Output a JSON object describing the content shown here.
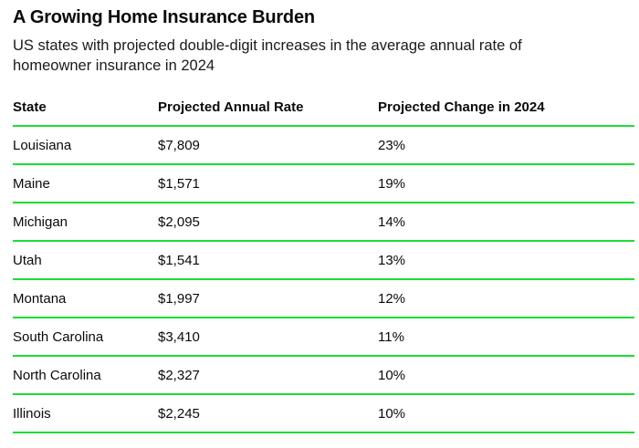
{
  "page": {
    "background": "#ffffff"
  },
  "header": {
    "title": "A Growing Home Insurance Burden",
    "subtitle": "US states with projected double-digit increases in the average annual rate of homeowner insurance in 2024"
  },
  "table": {
    "accent_color": "#1edc34",
    "columns": [
      "State",
      "Projected Annual Rate",
      "Projected Change in 2024"
    ],
    "rows": [
      {
        "state": "Louisiana",
        "rate": "$7,809",
        "change": "23%"
      },
      {
        "state": "Maine",
        "rate": "$1,571",
        "change": "19%"
      },
      {
        "state": "Michigan",
        "rate": "$2,095",
        "change": "14%"
      },
      {
        "state": "Utah",
        "rate": "$1,541",
        "change": "13%"
      },
      {
        "state": "Montana",
        "rate": "$1,997",
        "change": "12%"
      },
      {
        "state": "South Carolina",
        "rate": "$3,410",
        "change": "11%"
      },
      {
        "state": "North Carolina",
        "rate": "$2,327",
        "change": "10%"
      },
      {
        "state": "Illinois",
        "rate": "$2,245",
        "change": "10%"
      }
    ]
  },
  "chart_data": {
    "type": "table",
    "title": "A Growing Home Insurance Burden",
    "subtitle": "US states with projected double-digit increases in the average annual rate of homeowner insurance in 2024",
    "columns": [
      "State",
      "Projected Annual Rate",
      "Projected Change in 2024"
    ],
    "rows": [
      [
        "Louisiana",
        "$7,809",
        "23%"
      ],
      [
        "Maine",
        "$1,571",
        "19%"
      ],
      [
        "Michigan",
        "$2,095",
        "14%"
      ],
      [
        "Utah",
        "$1,541",
        "13%"
      ],
      [
        "Montana",
        "$1,997",
        "12%"
      ],
      [
        "South Carolina",
        "$3,410",
        "11%"
      ],
      [
        "North Carolina",
        "$2,327",
        "10%"
      ],
      [
        "Illinois",
        "$2,245",
        "10%"
      ]
    ],
    "projected_annual_rate_usd": [
      7809,
      1571,
      2095,
      1541,
      1997,
      3410,
      2327,
      2245
    ],
    "projected_change_pct": [
      23,
      19,
      14,
      13,
      12,
      11,
      10,
      10
    ],
    "layout": {
      "grid": "horizontal-green-rules",
      "legend": "none"
    }
  }
}
